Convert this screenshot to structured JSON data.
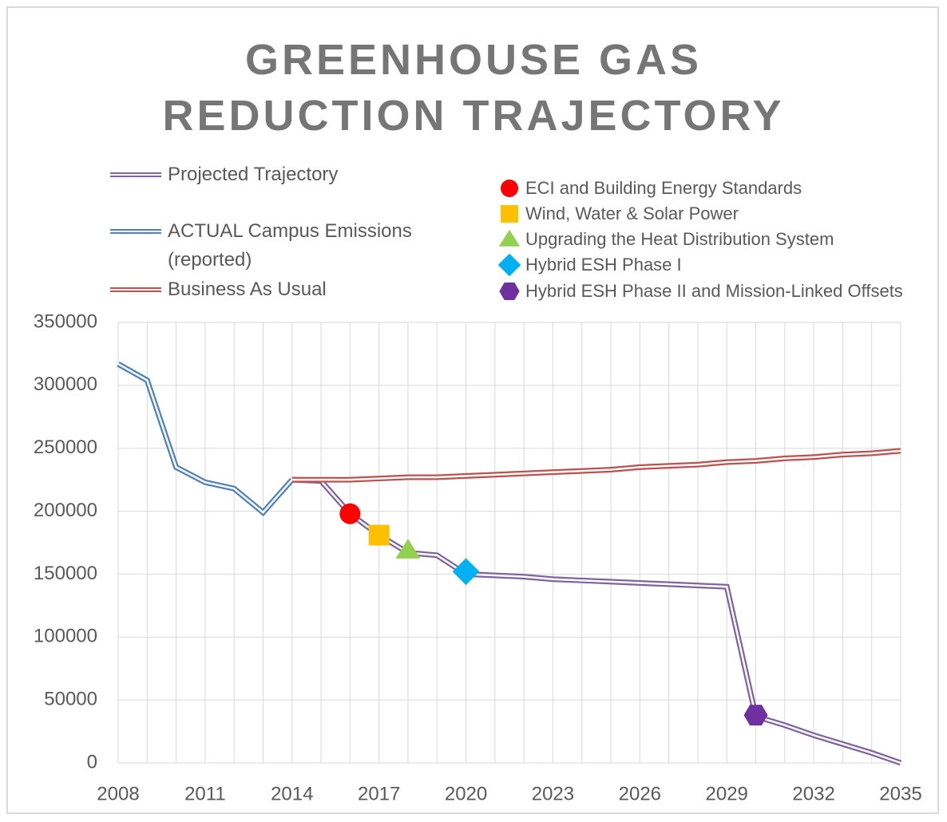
{
  "chart_data": {
    "type": "line",
    "title": "GREENHOUSE GAS REDUCTION TRAJECTORY",
    "legend": "top",
    "grid": true,
    "xlim": [
      2008,
      2035
    ],
    "xticks": [
      2008,
      2011,
      2014,
      2017,
      2020,
      2023,
      2026,
      2029,
      2032,
      2035
    ],
    "ylim": [
      0,
      350000
    ],
    "yticks": [
      0,
      50000,
      100000,
      150000,
      200000,
      250000,
      300000,
      350000
    ],
    "series": [
      {
        "name": "Projected Trajectory",
        "color": "#8064a2",
        "x": [
          2014,
          2015,
          2016,
          2017,
          2018,
          2019,
          2020,
          2021,
          2022,
          2023,
          2024,
          2025,
          2026,
          2027,
          2028,
          2029,
          2030,
          2031,
          2032,
          2033,
          2034,
          2035
        ],
        "values": [
          225000,
          224000,
          198000,
          181000,
          167000,
          165000,
          150000,
          149000,
          148000,
          146000,
          145000,
          144000,
          143000,
          142000,
          141000,
          140000,
          37000,
          30000,
          22000,
          15000,
          8000,
          0
        ]
      },
      {
        "name": "ACTUAL Campus Emissions (reported)",
        "color": "#4f81bd",
        "x": [
          2008,
          2009,
          2010,
          2011,
          2012,
          2013,
          2014
        ],
        "values": [
          317000,
          304000,
          235000,
          223000,
          218000,
          199000,
          225000
        ]
      },
      {
        "name": "Business As Usual",
        "color": "#c0504d",
        "x": [
          2014,
          2015,
          2016,
          2017,
          2018,
          2019,
          2020,
          2021,
          2022,
          2023,
          2024,
          2025,
          2026,
          2027,
          2028,
          2029,
          2030,
          2031,
          2032,
          2033,
          2034,
          2035
        ],
        "values": [
          225000,
          225000,
          225000,
          226000,
          227000,
          227000,
          228000,
          229000,
          230000,
          231000,
          232000,
          233000,
          235000,
          236000,
          237000,
          239000,
          240000,
          242000,
          243000,
          245000,
          246000,
          248000
        ]
      },
      {
        "name": "ECI and Building Energy Standards",
        "color": "#ff0000",
        "marker": "circle",
        "x": [
          2016
        ],
        "values": [
          198000
        ]
      },
      {
        "name": "Wind, Water & Solar Power",
        "color": "#ffc000",
        "marker": "square",
        "x": [
          2017
        ],
        "values": [
          181000
        ]
      },
      {
        "name": "Upgrading the Heat Distribution System",
        "color": "#92d050",
        "marker": "triangle",
        "x": [
          2018
        ],
        "values": [
          169000
        ]
      },
      {
        "name": "Hybrid ESH Phase I",
        "color": "#00b0f0",
        "marker": "diamond",
        "x": [
          2020
        ],
        "values": [
          152000
        ]
      },
      {
        "name": "Hybrid ESH Phase II and Mission-Linked Offsets",
        "color": "#7030a0",
        "marker": "hexagon",
        "x": [
          2030
        ],
        "values": [
          38000
        ]
      }
    ]
  }
}
